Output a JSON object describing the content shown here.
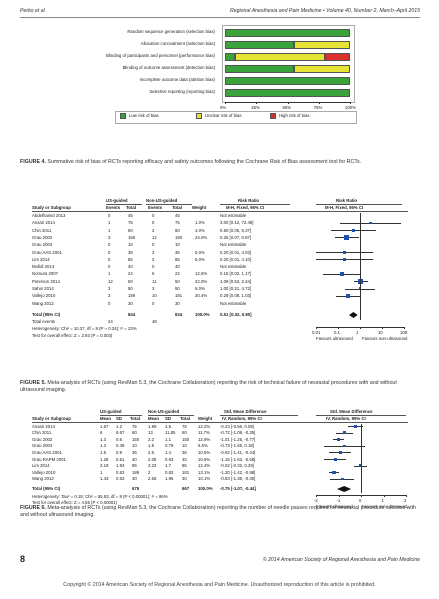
{
  "header": {
    "left": "Perko et al",
    "right": "Regional Anesthesia and Pain Medicine  •  Volume 40, Number 2, March–April 2015"
  },
  "fig4": {
    "rows": [
      {
        "label": "Random sequence generation (selection bias)",
        "g": 100,
        "y": 0,
        "r": 0
      },
      {
        "label": "Allocation concealment (selection bias)",
        "g": 55,
        "y": 45,
        "r": 0
      },
      {
        "label": "Blinding of participants and personnel (performance bias)",
        "g": 8,
        "y": 72,
        "r": 20
      },
      {
        "label": "Blinding of outcome assessment (detection bias)",
        "g": 55,
        "y": 45,
        "r": 0
      },
      {
        "label": "Incomplete outcome data (attrition bias)",
        "g": 100,
        "y": 0,
        "r": 0
      },
      {
        "label": "Selective reporting (reporting bias)",
        "g": 100,
        "y": 0,
        "r": 0
      }
    ],
    "ticks": [
      "0%",
      "25%",
      "50%",
      "75%",
      "100%"
    ],
    "legend": [
      "Low risk of bias",
      "Unclear risk of bias",
      "High risk of bias"
    ],
    "colors": {
      "low": "#3aa33a",
      "unclear": "#e7e236",
      "high": "#d9302b"
    },
    "caption_label": "FIGURE 4.",
    "caption_text": " Summative risk of bias of RCTs reporting efficacy and safety outcomes following the Cochrane Risk of Bias assessment tool for RCTs."
  },
  "fig5": {
    "group1": "US-guided",
    "group2": "Non-US-guided",
    "rr_head": "Risk Ratio",
    "rr_head2": "Risk Ratio",
    "columns": [
      "Study or Subgroup",
      "Events",
      "Total",
      "Events",
      "Total",
      "Weight",
      "M-H, Fixed, 95% CI",
      "M-H, Fixed, 95% CI"
    ],
    "rows": [
      {
        "study": "Abdelhamid 2013",
        "e1": "0",
        "t1": "45",
        "e2": "0",
        "t2": "45",
        "w": "",
        "ci": "Not estimable",
        "rr": null
      },
      {
        "study": "Ansari 2014",
        "e1": "1",
        "t1": "75",
        "e2": "0",
        "t2": "75",
        "w": "1.0%",
        "ci": "3.00 [0.12, 72.49]",
        "rr": 3.0,
        "lo": 0.12,
        "hi": 72.49
      },
      {
        "study": "Chin 2011",
        "e1": "1",
        "t1": "60",
        "e2": "2",
        "t2": "60",
        "w": "4.0%",
        "ci": "0.50 [0.05, 5.37]",
        "rr": 0.5,
        "lo": 0.05,
        "hi": 5.37
      },
      {
        "study": "Grau 2002",
        "e1": "3",
        "t1": "150",
        "e2": "12",
        "t2": "150",
        "w": "24.0%",
        "ci": "0.25 [0.07, 0.87]",
        "rr": 0.25,
        "lo": 0.07,
        "hi": 0.87
      },
      {
        "study": "Grau 2004",
        "e1": "0",
        "t1": "10",
        "e2": "0",
        "t2": "10",
        "w": "",
        "ci": "Not estimable",
        "rr": null
      },
      {
        "study": "Grau AAS 2001",
        "e1": "0",
        "t1": "36",
        "e2": "2",
        "t2": "36",
        "w": "5.0%",
        "ci": "0.20 [0.01, 4.03]",
        "rr": 0.2,
        "lo": 0.01,
        "hi": 4.03
      },
      {
        "study": "Lim 2014",
        "e1": "0",
        "t1": "85",
        "e2": "2",
        "t2": "85",
        "w": "5.0%",
        "ci": "0.20 [0.01, 4.10]",
        "rr": 0.2,
        "lo": 0.01,
        "hi": 4.1
      },
      {
        "study": "Mofidi 2013",
        "e1": "0",
        "t1": "40",
        "e2": "0",
        "t2": "40",
        "w": "",
        "ci": "Not estimable",
        "rr": null
      },
      {
        "study": "Nomura 2007",
        "e1": "1",
        "t1": "24",
        "e2": "6",
        "t2": "22",
        "w": "12.5%",
        "ci": "0.15 [0.02, 1.17]",
        "rr": 0.15,
        "lo": 0.02,
        "hi": 1.17
      },
      {
        "study": "Peterson 2014",
        "e1": "12",
        "t1": "50",
        "e2": "11",
        "t2": "50",
        "w": "22.0%",
        "ci": "1.09 [0.53, 2.24]",
        "rr": 1.09,
        "lo": 0.53,
        "hi": 2.24
      },
      {
        "study": "Sahin 2014",
        "e1": "3",
        "t1": "50",
        "e2": "3",
        "t2": "50",
        "w": "6.0%",
        "ci": "1.00 [0.21, 4.72]",
        "rr": 1.0,
        "lo": 0.21,
        "hi": 4.72
      },
      {
        "study": "Vallejo 2010",
        "e1": "3",
        "t1": "189",
        "e2": "10",
        "t2": "181",
        "w": "20.4%",
        "ci": "0.29 [0.08, 1.03]",
        "rr": 0.29,
        "lo": 0.08,
        "hi": 1.03
      },
      {
        "study": "Wang 2012",
        "e1": "0",
        "t1": "30",
        "e2": "0",
        "t2": "30",
        "w": "",
        "ci": "Not estimable",
        "rr": null
      }
    ],
    "total_label": "Total (95% CI)",
    "total_t1": "844",
    "total_t2": "834",
    "total_w": "100.0%",
    "total_ci": "0.51 [0.32, 0.80]",
    "total_rr": 0.51,
    "total_lo": 0.32,
    "total_hi": 0.8,
    "events_label": "Total events",
    "events1": "24",
    "events2": "48",
    "het": "Heterogeneity: Chi² = 10.37, df = 8 (P = 0.24); I² = 23%",
    "test": "Test for overall effect: Z = 2.93 (P = 0.003)",
    "axis_ticks": [
      "0.01",
      "0.1",
      "1",
      "10",
      "100"
    ],
    "favours_left": "Favours ultrasound",
    "favours_right": "Favours non-ultrasound",
    "caption_label": "FIGURE 5.",
    "caption_text": " Meta-analysis of RCTs (using RevMan 5.3, the Cochrane Collaboration) reporting the risk of technical failure of neuraxial procedures with and without ultrasound imaging."
  },
  "fig6": {
    "group1": "US-guided",
    "group2": "Non-US-guided",
    "smd_head": "Std. Mean Difference",
    "smd_head2": "Std. Mean Difference",
    "columns": [
      "Study or Subgroup",
      "Mean",
      "SD",
      "Total",
      "Mean",
      "SD",
      "Total",
      "Weight",
      "IV, Random, 95% CI",
      "IV, Random, 95% CI"
    ],
    "rows": [
      {
        "study": "Ansari 2014",
        "m1": "1.67",
        "s1": "1.2",
        "n1": "75",
        "m2": "1.99",
        "s2": "1.5",
        "n2": "75",
        "w": "12.2%",
        "ci": "-0.23 [-0.56, 0.09]",
        "d": -0.23,
        "lo": -0.56,
        "hi": 0.09
      },
      {
        "study": "Chin 2011",
        "m1": "6",
        "s1": "8.67",
        "n1": "60",
        "m2": "13",
        "s2": "11.85",
        "n2": "60",
        "w": "11.7%",
        "ci": "-0.72 [-1.09, -0.35]",
        "d": -0.72,
        "lo": -1.09,
        "hi": -0.35
      },
      {
        "study": "Grau 2002",
        "m1": "1.3",
        "s1": "0.6",
        "n1": "150",
        "m2": "2.2",
        "s2": "1.1",
        "n2": "150",
        "w": "12.9%",
        "ci": "-1.01 [-1.25, -0.77]",
        "d": -1.01,
        "lo": -1.25,
        "hi": -0.77
      },
      {
        "study": "Grau 2004",
        "m1": "1.3",
        "s1": "0.48",
        "n1": "10",
        "m2": "1.8",
        "s2": "0.79",
        "n2": "10",
        "w": "6.5%",
        "ci": "-0.73 [-1.65, 0.18]",
        "d": -0.73,
        "lo": -1.65,
        "hi": 0.18
      },
      {
        "study": "Grau AAS 2001",
        "m1": "1.5",
        "s1": "0.9",
        "n1": "36",
        "m2": "2.6",
        "s2": "1.4",
        "n2": "36",
        "w": "10.5%",
        "ci": "-0.92 [-1.41, -0.44]",
        "d": -0.92,
        "lo": -1.41,
        "hi": -0.44
      },
      {
        "study": "Grau RAPM 2001",
        "m1": "1.28",
        "s1": "0.51",
        "n1": "40",
        "m2": "2.08",
        "s2": "0.83",
        "n2": "40",
        "w": "10.6%",
        "ci": "-1.15 [-1.63, -0.68]",
        "d": -1.15,
        "lo": -1.63,
        "hi": -0.68
      },
      {
        "study": "Lim 2014",
        "m1": "3.19",
        "s1": "1.93",
        "n1": "85",
        "m2": "3.23",
        "s2": "1.7",
        "n2": "85",
        "w": "12.4%",
        "ci": "-0.02 [-0.32, 0.28]",
        "d": -0.02,
        "lo": -0.32,
        "hi": 0.28
      },
      {
        "study": "Vallejo 2010",
        "m1": "1",
        "s1": "0.83",
        "n1": "189",
        "m2": "2",
        "s2": "0.83",
        "n2": "181",
        "w": "13.1%",
        "ci": "-1.20 [-1.42, -0.98]",
        "d": -1.2,
        "lo": -1.42,
        "hi": -0.98
      },
      {
        "study": "Wang 2012",
        "m1": "1.43",
        "s1": "0.63",
        "n1": "30",
        "m2": "2.65",
        "s2": "1.96",
        "n2": "30",
        "w": "10.1%",
        "ci": "-0.83 [-1.36, -0.30]",
        "d": -0.83,
        "lo": -1.36,
        "hi": -0.3
      }
    ],
    "total_label": "Total (95% CI)",
    "total_n1": "675",
    "total_n2": "667",
    "total_w": "100.0%",
    "total_ci": "-0.75 [-1.07, -0.44]",
    "total_d": -0.75,
    "total_lo": -1.07,
    "total_hi": -0.44,
    "het": "Heterogeneity: Tau² = 0.19; Chi² = 55.83, df = 8 (P < 0.00001); I² = 86%",
    "test": "Test for overall effect: Z = 4.65 (P < 0.00001)",
    "axis_ticks": [
      "-2",
      "-1",
      "0",
      "1",
      "2"
    ],
    "favours_left": "Favours ultrasound",
    "favours_right": "Favours non-ultrasound",
    "caption_label": "FIGURE 6.",
    "caption_text": " Meta-analysis of RCTs (using RevMan 5.3, the Cochrane Collaboration) reporting the number of needle passes required for neuraxial procedure success with and without ultrasound imaging."
  },
  "footer": {
    "page_number": "8",
    "right": "© 2014 American Society of Regional Anesthesia and Pain Medicine",
    "copyright": "Copyright © 2014 American Society of Regional Anesthesia and Pain Medicine. Unauthorized reproduction of this article is prohibited."
  }
}
